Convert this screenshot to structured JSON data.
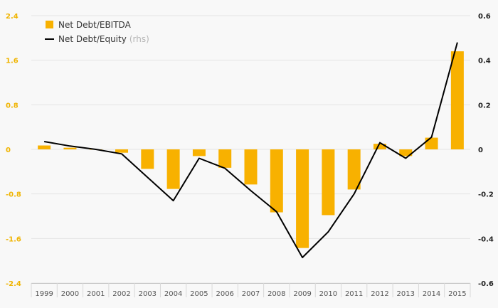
{
  "chart_data": {
    "type": "bar",
    "categories": [
      "1999",
      "2000",
      "2001",
      "2002",
      "2003",
      "2004",
      "2005",
      "2006",
      "2007",
      "2008",
      "2009",
      "2010",
      "2011",
      "2012",
      "2013",
      "2014",
      "2015"
    ],
    "series": [
      {
        "name": "Net Debt/EBITDA",
        "type": "bar",
        "axis": "left",
        "color": "#f8b100",
        "values": [
          0.07,
          0.03,
          0.0,
          -0.06,
          -0.35,
          -0.71,
          -0.12,
          -0.33,
          -0.63,
          -1.13,
          -1.77,
          -1.18,
          -0.72,
          0.1,
          -0.12,
          0.21,
          1.76
        ]
      },
      {
        "name": "Net Debt/Equity",
        "aside": "(rhs)",
        "type": "line",
        "axis": "right",
        "color": "#000000",
        "values": [
          0.035,
          0.015,
          0.0,
          -0.02,
          -0.125,
          -0.23,
          -0.04,
          -0.085,
          -0.185,
          -0.28,
          -0.485,
          -0.37,
          -0.2,
          0.03,
          -0.04,
          0.055,
          0.48
        ]
      }
    ],
    "y_left": {
      "min": -2.4,
      "max": 2.4,
      "ticks": [
        "2.4",
        "1.6",
        "0.8",
        "0",
        "-0.8",
        "-1.6",
        "-2.4"
      ]
    },
    "y_right": {
      "min": -0.6,
      "max": 0.6,
      "ticks": [
        "0.6",
        "0.4",
        "0.2",
        "0",
        "-0.2",
        "-0.4",
        "-0.6"
      ]
    },
    "grid": true,
    "legend_position": "top-left"
  }
}
